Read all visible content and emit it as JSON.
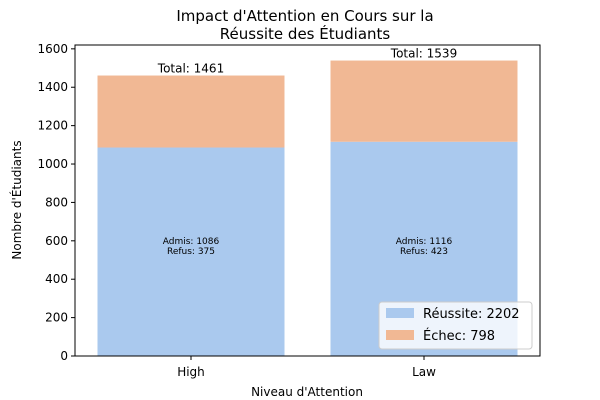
{
  "chart_data": {
    "type": "bar",
    "stacked": true,
    "title": [
      "Impact d'Attention en Cours sur la",
      "Réussite des Étudiants"
    ],
    "xlabel": "Niveau d'Attention",
    "ylabel": "Nombre d'Étudiants",
    "categories": [
      "High",
      "Law"
    ],
    "ylim": [
      0,
      1620
    ],
    "yticks": [
      0,
      200,
      400,
      600,
      800,
      1000,
      1200,
      1400,
      1600
    ],
    "grid": false,
    "legend_position": "bottom-right",
    "series": [
      {
        "name": "Réussite: 2202",
        "color": "#aac9ee",
        "values": [
          1086,
          1116
        ]
      },
      {
        "name": "Échec: 798",
        "color": "#f1b894",
        "values": [
          375,
          423
        ]
      }
    ],
    "total_labels": [
      "Total: 1461",
      "Total: 1539"
    ],
    "inner_labels": [
      [
        "Admis: 1086",
        "Refus: 375"
      ],
      [
        "Admis: 1116",
        "Refus: 423"
      ]
    ]
  }
}
